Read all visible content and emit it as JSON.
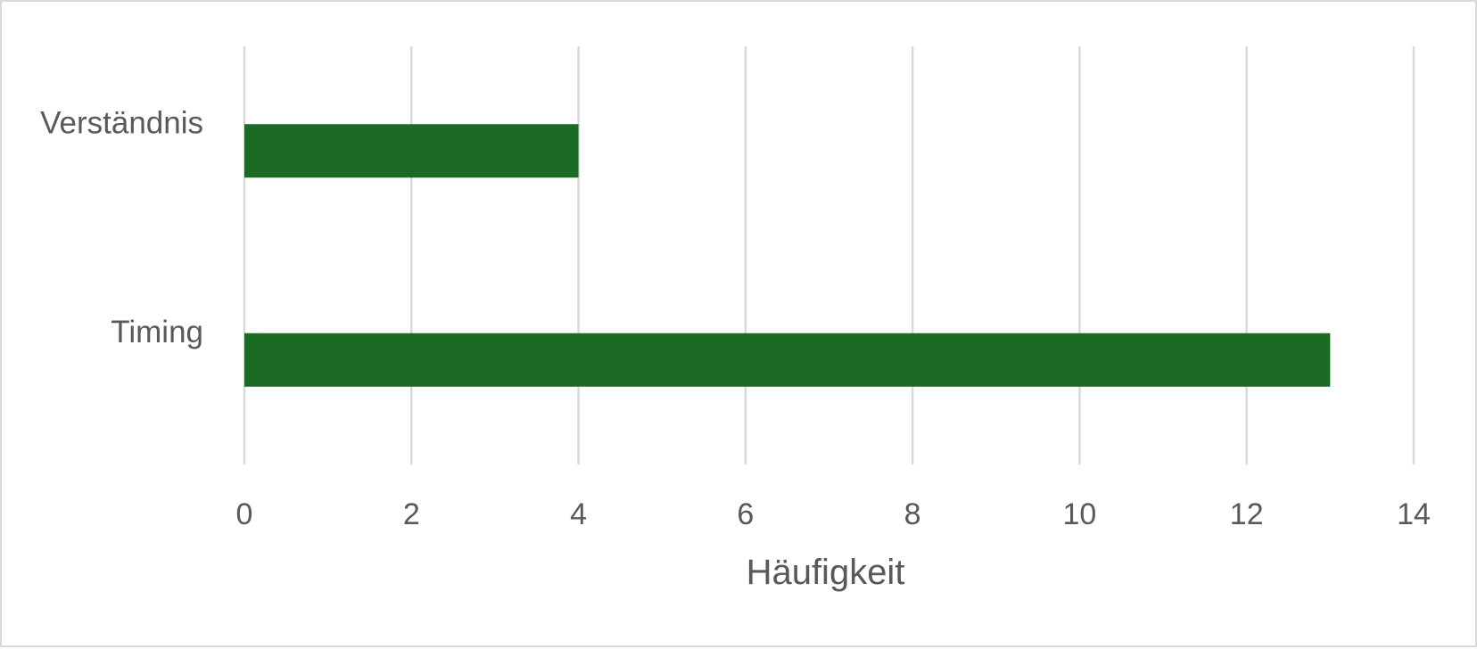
{
  "chart_data": {
    "type": "bar",
    "orientation": "horizontal",
    "categories": [
      "Timing",
      "Verständnis"
    ],
    "values": [
      13,
      4
    ],
    "title": "",
    "xlabel": "Häufigkeit",
    "ylabel": "",
    "xlim": [
      0,
      14
    ],
    "x_ticks": [
      0,
      2,
      4,
      6,
      8,
      10,
      12,
      14
    ],
    "grid": "vertical",
    "legend": "none",
    "bar_color": "#1b6b25",
    "grid_color": "#d9d9d9",
    "text_color": "#595959"
  }
}
